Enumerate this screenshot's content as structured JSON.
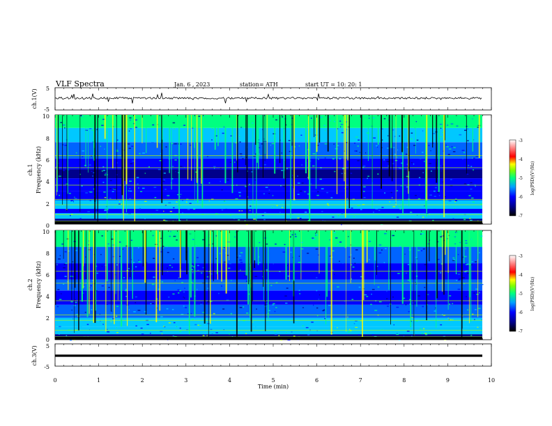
{
  "header": {
    "title": "VLF Spectra",
    "date": "Jan. 6 , 2023",
    "station": "station= ATH",
    "start_time": "start UT =   10: 20: 1"
  },
  "colors": {
    "spectrogram_palette": [
      "#000000",
      "#00008b",
      "#0000ff",
      "#0064ff",
      "#00c8ff",
      "#00ff80",
      "#b4ff00",
      "#ffff00",
      "#ff6400",
      "#ff0000",
      "#ffffff"
    ],
    "waveform": "#000000"
  },
  "chart_data": [
    {
      "type": "line",
      "name": "ch1-waveform",
      "ylabel": "ch.1(V)",
      "ylim": [
        -5,
        5
      ],
      "yticks": [
        "5",
        "-5"
      ],
      "x": [
        0,
        1,
        2,
        3,
        4,
        5,
        6,
        7,
        8,
        9,
        9.8
      ],
      "y": [
        0.2,
        0.1,
        0.2,
        0.0,
        0.3,
        0.2,
        0.1,
        0.3,
        0.1,
        0.2,
        -0.3
      ]
    },
    {
      "type": "heatmap",
      "name": "ch1-spectrogram",
      "ylabel": "ch.1\nFrequency (kHz)",
      "ylim": [
        0,
        10
      ],
      "yticks": [
        "0",
        "2",
        "4",
        "6",
        "8",
        "10"
      ],
      "colorbar": {
        "label": "log(PSD)(V²/Hz)",
        "range": [
          -7,
          -3
        ],
        "ticks": [
          "-3",
          "-4",
          "-5",
          "-6",
          "-7"
        ]
      }
    },
    {
      "type": "heatmap",
      "name": "ch2-spectrogram",
      "ylabel": "ch.2\nFrequency (kHz)",
      "ylim": [
        0,
        10
      ],
      "yticks": [
        "0",
        "2",
        "4",
        "6",
        "8",
        "10"
      ],
      "colorbar": {
        "label": "log(PSD)(V²/Hz)",
        "range": [
          -7,
          -3
        ],
        "ticks": [
          "-3",
          "-4",
          "-5",
          "-6",
          "-7"
        ]
      }
    },
    {
      "type": "line",
      "name": "ch3-waveform",
      "ylabel": "ch.3(V)",
      "ylim": [
        -5,
        5
      ],
      "yticks": [
        "5",
        "-5"
      ],
      "x": [
        0,
        9.8
      ],
      "y": [
        0,
        0
      ]
    }
  ],
  "xaxis": {
    "label": "Time  (min)",
    "ticks": [
      "0",
      "1",
      "2",
      "3",
      "4",
      "5",
      "6",
      "7",
      "8",
      "9",
      "10"
    ]
  }
}
